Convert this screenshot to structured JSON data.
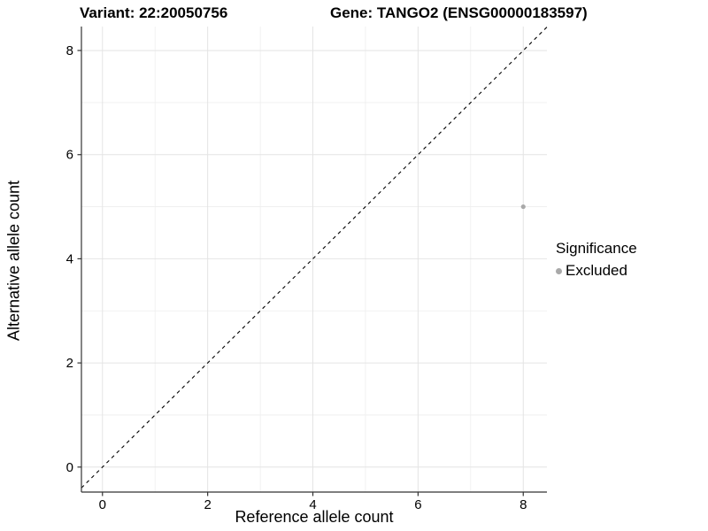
{
  "chart_data": {
    "type": "scatter",
    "title_left": "Variant: 22:20050756",
    "title_right": "Gene: TANGO2 (ENSG00000183597)",
    "xlabel": "Reference allele count",
    "ylabel": "Alternative allele count",
    "xlim": [
      -0.4,
      8.45
    ],
    "ylim": [
      -0.48,
      8.46
    ],
    "xticks": [
      0,
      2,
      4,
      6,
      8
    ],
    "yticks": [
      0,
      2,
      4,
      6,
      8
    ],
    "x_minor": [
      1,
      3,
      5,
      7
    ],
    "y_minor": [
      1,
      3,
      5,
      7
    ],
    "grid": "on",
    "identity_line": {
      "equation": "y = x",
      "style": "dashed",
      "color": "#000000"
    },
    "series": [
      {
        "name": "Excluded",
        "color": "#a9a9a9",
        "points": [
          {
            "x": 8,
            "y": 5
          }
        ]
      }
    ],
    "legend": {
      "title": "Significance",
      "position": "right",
      "items": [
        {
          "label": "Excluded",
          "color": "#a9a9a9",
          "marker": "circle-icon"
        }
      ]
    },
    "colors": {
      "background": "#ffffff",
      "grid_major": "#e4e4e4",
      "grid_minor": "#eeeeee",
      "axis": "#333333",
      "text": "#000000"
    }
  }
}
